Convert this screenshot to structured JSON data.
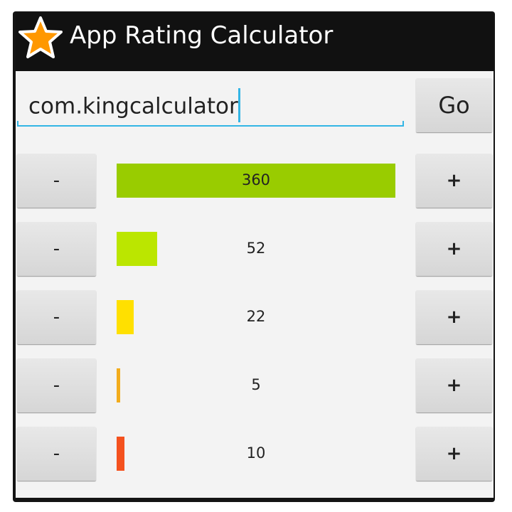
{
  "header": {
    "title": "App Rating Calculator"
  },
  "search": {
    "value": "com.kingcalculator",
    "button": "Go"
  },
  "decrement_label": "-",
  "increment_label": "+",
  "rows": [
    {
      "count": 360,
      "color": "#99cc00"
    },
    {
      "count": 52,
      "color": "#bbe600"
    },
    {
      "count": 22,
      "color": "#ffe000"
    },
    {
      "count": 5,
      "color": "#f2ac1c"
    },
    {
      "count": 10,
      "color": "#f4511e"
    }
  ]
}
